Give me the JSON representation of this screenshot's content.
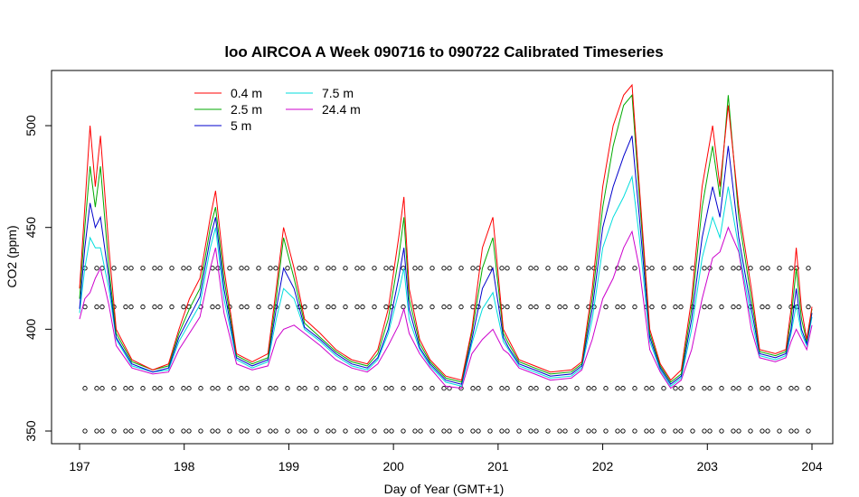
{
  "chart_data": {
    "type": "line",
    "title": "loo AIRCOA A  Week 090716 to 090722  Calibrated Timeseries",
    "xlabel": "Day of Year (GMT+1)",
    "ylabel": "CO2 (ppm)",
    "xlim": [
      197,
      204
    ],
    "ylim": [
      345,
      520
    ],
    "xticks": [
      "197",
      "198",
      "199",
      "200",
      "201",
      "202",
      "203",
      "204"
    ],
    "yticks": [
      "350",
      "400",
      "450",
      "500"
    ],
    "legend_position": "top-left",
    "grid": false,
    "series": [
      {
        "name": "0.4 m",
        "color": "#ff0000",
        "x": [
          197.0,
          197.05,
          197.1,
          197.15,
          197.2,
          197.28,
          197.35,
          197.5,
          197.7,
          197.85,
          197.95,
          198.05,
          198.15,
          198.25,
          198.3,
          198.38,
          198.5,
          198.65,
          198.8,
          198.88,
          198.95,
          199.05,
          199.15,
          199.3,
          199.45,
          199.6,
          199.75,
          199.85,
          199.95,
          200.05,
          200.1,
          200.15,
          200.25,
          200.35,
          200.5,
          200.65,
          200.75,
          200.85,
          200.95,
          201.05,
          201.1,
          201.2,
          201.35,
          201.5,
          201.7,
          201.8,
          201.9,
          202.0,
          202.1,
          202.2,
          202.28,
          202.35,
          202.45,
          202.55,
          202.65,
          202.75,
          202.85,
          202.95,
          203.05,
          203.12,
          203.2,
          203.3,
          203.42,
          203.5,
          203.65,
          203.75,
          203.8,
          203.85,
          203.9,
          203.95,
          204.0
        ],
        "values": [
          420,
          460,
          500,
          470,
          495,
          440,
          400,
          385,
          380,
          383,
          400,
          415,
          425,
          455,
          468,
          430,
          388,
          384,
          388,
          420,
          450,
          430,
          405,
          398,
          390,
          385,
          383,
          390,
          410,
          445,
          465,
          420,
          395,
          385,
          377,
          375,
          400,
          440,
          455,
          400,
          395,
          385,
          382,
          379,
          380,
          384,
          420,
          470,
          500,
          515,
          520,
          470,
          400,
          383,
          375,
          380,
          415,
          470,
          500,
          470,
          510,
          460,
          420,
          390,
          388,
          390,
          410,
          440,
          410,
          395,
          411
        ]
      },
      {
        "name": "2.5 m",
        "color": "#00aa00",
        "x": [
          197.0,
          197.05,
          197.1,
          197.15,
          197.2,
          197.28,
          197.35,
          197.5,
          197.7,
          197.85,
          197.95,
          198.05,
          198.15,
          198.25,
          198.3,
          198.38,
          198.5,
          198.65,
          198.8,
          198.88,
          198.95,
          199.05,
          199.15,
          199.3,
          199.45,
          199.6,
          199.75,
          199.85,
          199.95,
          200.05,
          200.1,
          200.15,
          200.25,
          200.35,
          200.5,
          200.65,
          200.75,
          200.85,
          200.95,
          201.05,
          201.1,
          201.2,
          201.35,
          201.5,
          201.7,
          201.8,
          201.9,
          202.0,
          202.1,
          202.2,
          202.28,
          202.35,
          202.45,
          202.55,
          202.65,
          202.75,
          202.85,
          202.95,
          203.05,
          203.12,
          203.2,
          203.3,
          203.42,
          203.5,
          203.65,
          203.75,
          203.8,
          203.85,
          203.9,
          203.95,
          204.0
        ],
        "values": [
          415,
          450,
          480,
          460,
          480,
          430,
          398,
          384,
          380,
          382,
          398,
          410,
          420,
          450,
          460,
          425,
          387,
          383,
          386,
          415,
          445,
          425,
          403,
          396,
          389,
          384,
          382,
          388,
          405,
          435,
          455,
          415,
          393,
          384,
          376,
          374,
          398,
          430,
          445,
          398,
          393,
          384,
          381,
          378,
          379,
          383,
          415,
          460,
          490,
          510,
          515,
          465,
          398,
          382,
          374,
          378,
          410,
          460,
          490,
          465,
          515,
          455,
          415,
          389,
          387,
          389,
          405,
          430,
          405,
          394,
          410
        ]
      },
      {
        "name": "5 m",
        "color": "#0000cc",
        "x": [
          197.0,
          197.05,
          197.1,
          197.15,
          197.2,
          197.28,
          197.35,
          197.5,
          197.7,
          197.85,
          197.95,
          198.05,
          198.15,
          198.25,
          198.3,
          198.38,
          198.5,
          198.65,
          198.8,
          198.88,
          198.95,
          199.05,
          199.15,
          199.3,
          199.45,
          199.6,
          199.75,
          199.85,
          199.95,
          200.05,
          200.1,
          200.15,
          200.25,
          200.35,
          200.5,
          200.65,
          200.75,
          200.85,
          200.95,
          201.05,
          201.1,
          201.2,
          201.35,
          201.5,
          201.7,
          201.8,
          201.9,
          202.0,
          202.1,
          202.2,
          202.28,
          202.35,
          202.45,
          202.55,
          202.65,
          202.75,
          202.85,
          202.95,
          203.05,
          203.12,
          203.2,
          203.3,
          203.42,
          203.5,
          203.65,
          203.75,
          203.8,
          203.85,
          203.9,
          203.95,
          204.0
        ],
        "values": [
          410,
          440,
          462,
          450,
          455,
          425,
          396,
          383,
          379,
          381,
          396,
          406,
          416,
          445,
          455,
          420,
          386,
          382,
          385,
          410,
          430,
          420,
          401,
          395,
          388,
          383,
          381,
          386,
          400,
          425,
          440,
          410,
          391,
          383,
          375,
          373,
          395,
          420,
          430,
          396,
          391,
          383,
          380,
          377,
          378,
          382,
          410,
          450,
          470,
          485,
          495,
          455,
          396,
          381,
          373,
          377,
          405,
          445,
          470,
          455,
          490,
          445,
          410,
          388,
          386,
          388,
          400,
          420,
          400,
          393,
          408
        ]
      },
      {
        "name": "7.5 m",
        "color": "#00dddd",
        "x": [
          197.0,
          197.05,
          197.1,
          197.15,
          197.2,
          197.28,
          197.35,
          197.5,
          197.7,
          197.85,
          197.95,
          198.05,
          198.15,
          198.25,
          198.3,
          198.38,
          198.5,
          198.65,
          198.8,
          198.88,
          198.95,
          199.05,
          199.15,
          199.3,
          199.45,
          199.6,
          199.75,
          199.85,
          199.95,
          200.05,
          200.1,
          200.15,
          200.25,
          200.35,
          200.5,
          200.65,
          200.75,
          200.85,
          200.95,
          201.05,
          201.1,
          201.2,
          201.35,
          201.5,
          201.7,
          201.8,
          201.9,
          202.0,
          202.1,
          202.2,
          202.28,
          202.35,
          202.45,
          202.55,
          202.65,
          202.75,
          202.85,
          202.95,
          203.05,
          203.12,
          203.2,
          203.3,
          203.42,
          203.5,
          203.65,
          203.75,
          203.8,
          203.85,
          203.9,
          203.95,
          204.0
        ],
        "values": [
          408,
          430,
          445,
          440,
          440,
          420,
          395,
          382,
          379,
          380,
          394,
          403,
          412,
          440,
          450,
          415,
          385,
          381,
          384,
          405,
          420,
          415,
          400,
          394,
          387,
          382,
          380,
          385,
          398,
          418,
          430,
          405,
          390,
          382,
          374,
          372,
          393,
          410,
          418,
          394,
          390,
          382,
          379,
          376,
          377,
          381,
          405,
          440,
          455,
          465,
          475,
          445,
          394,
          380,
          372,
          376,
          400,
          435,
          455,
          445,
          470,
          440,
          405,
          387,
          385,
          387,
          398,
          412,
          398,
          392,
          406
        ]
      },
      {
        "name": "24.4 m",
        "color": "#cc00cc",
        "x": [
          197.0,
          197.05,
          197.1,
          197.15,
          197.2,
          197.28,
          197.35,
          197.5,
          197.7,
          197.85,
          197.95,
          198.05,
          198.15,
          198.25,
          198.3,
          198.38,
          198.5,
          198.65,
          198.8,
          198.88,
          198.95,
          199.05,
          199.15,
          199.3,
          199.45,
          199.6,
          199.75,
          199.85,
          199.95,
          200.05,
          200.1,
          200.15,
          200.25,
          200.35,
          200.5,
          200.65,
          200.75,
          200.85,
          200.95,
          201.05,
          201.1,
          201.2,
          201.35,
          201.5,
          201.7,
          201.8,
          201.9,
          202.0,
          202.1,
          202.2,
          202.28,
          202.35,
          202.45,
          202.55,
          202.65,
          202.75,
          202.85,
          202.95,
          203.05,
          203.12,
          203.2,
          203.3,
          203.42,
          203.5,
          203.65,
          203.75,
          203.8,
          203.85,
          203.9,
          203.95,
          204.0
        ],
        "values": [
          405,
          415,
          418,
          425,
          430,
          412,
          392,
          381,
          378,
          379,
          390,
          398,
          406,
          430,
          440,
          408,
          383,
          380,
          382,
          395,
          400,
          402,
          398,
          392,
          385,
          381,
          379,
          383,
          392,
          402,
          410,
          398,
          388,
          381,
          372,
          371,
          388,
          395,
          400,
          390,
          388,
          381,
          378,
          375,
          376,
          380,
          395,
          415,
          425,
          440,
          448,
          430,
          390,
          379,
          371,
          375,
          390,
          415,
          435,
          438,
          450,
          438,
          400,
          386,
          384,
          386,
          394,
          400,
          395,
          390,
          402
        ]
      }
    ],
    "markers": {
      "symbol": "circle",
      "y_levels": [
        350,
        371,
        411,
        430
      ]
    }
  }
}
